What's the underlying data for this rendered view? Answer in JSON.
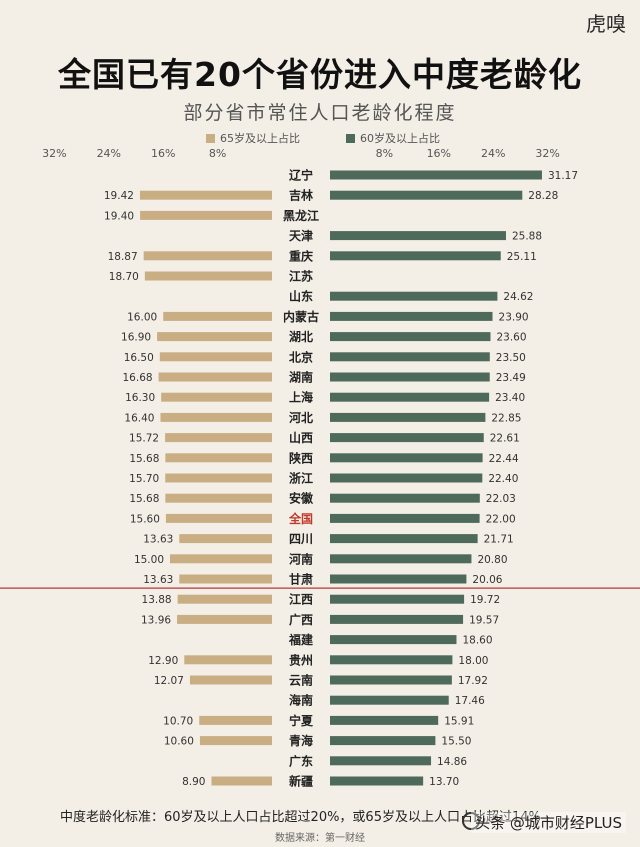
{
  "brand": "虎嗅",
  "chart_data": {
    "type": "bar",
    "title": "全国已有20个省份进入中度老龄化",
    "subtitle": "部分省市常住人口老龄化程度",
    "categories": [
      "辽宁",
      "吉林",
      "黑龙江",
      "天津",
      "重庆",
      "江苏",
      "山东",
      "内蒙古",
      "湖北",
      "北京",
      "湖南",
      "上海",
      "河北",
      "山西",
      "陕西",
      "浙江",
      "安徽",
      "全国",
      "四川",
      "河南",
      "甘肃",
      "江西",
      "广西",
      "福建",
      "贵州",
      "云南",
      "海南",
      "宁夏",
      "青海",
      "广东",
      "新疆"
    ],
    "highlight_category": "全国",
    "threshold_after_category": "甘肃",
    "series": [
      {
        "name": "65岁及以上占比",
        "color": "#c9ae84",
        "side": "left",
        "values": [
          null,
          19.42,
          19.4,
          null,
          18.87,
          18.7,
          null,
          16.0,
          16.9,
          16.5,
          16.68,
          16.3,
          16.4,
          15.72,
          15.68,
          15.7,
          15.68,
          15.6,
          13.63,
          15.0,
          13.63,
          13.88,
          13.96,
          null,
          12.9,
          12.07,
          null,
          10.7,
          10.6,
          null,
          8.9
        ],
        "labels": [
          "",
          "19.42",
          "19.40",
          "",
          "18.87",
          "18.70",
          "",
          "16.00",
          "16.90",
          "16.50",
          "16.68",
          "16.30",
          "16.40",
          "15.72",
          "15.68",
          "15.70",
          "15.68",
          "15.60",
          "13.63",
          "15.00",
          "13.63",
          "13.88",
          "13.96",
          "",
          "12.90",
          "12.07",
          "",
          "10.70",
          "10.60",
          "",
          "8.90"
        ]
      },
      {
        "name": "60岁及以上占比",
        "color": "#4e6a5a",
        "side": "right",
        "values": [
          31.17,
          28.28,
          null,
          25.88,
          25.11,
          null,
          24.62,
          23.9,
          23.6,
          23.5,
          23.49,
          23.4,
          22.85,
          22.61,
          22.44,
          22.4,
          22.03,
          22.0,
          21.71,
          20.8,
          20.06,
          19.72,
          19.57,
          18.6,
          18.0,
          17.92,
          17.46,
          15.91,
          15.5,
          14.86,
          13.7
        ],
        "labels": [
          "31.17",
          "28.28",
          "",
          "25.88",
          "25.11",
          "",
          "24.62",
          "23.90",
          "23.60",
          "23.50",
          "23.49",
          "23.40",
          "22.85",
          "22.61",
          "22.44",
          "22.40",
          "22.03",
          "22.00",
          "21.71",
          "20.80",
          "20.06",
          "19.72",
          "19.57",
          "18.60",
          "18.00",
          "17.92",
          "17.46",
          "15.91",
          "15.50",
          "14.86",
          "13.70"
        ]
      }
    ],
    "x_ticks_left": [
      "32%",
      "24%",
      "16%",
      "8%"
    ],
    "x_ticks_right": [
      "8%",
      "16%",
      "24%",
      "32%"
    ],
    "tick_values": [
      8,
      16,
      24,
      32
    ],
    "xlim": [
      0,
      32
    ],
    "legend_position": "top"
  },
  "footnote": "中度老龄化标准：60岁及以上人口占比超过20%，或65岁及以上人口占比超过14%",
  "source": "数据来源：第一财经",
  "watermark": "头条 @城市财经PLUS",
  "colors": {
    "background": "#f4efe6",
    "left_bar": "#c9ae84",
    "right_bar": "#4e6a5a",
    "highlight": "#c0392b",
    "threshold_line": "#b23a3a"
  }
}
